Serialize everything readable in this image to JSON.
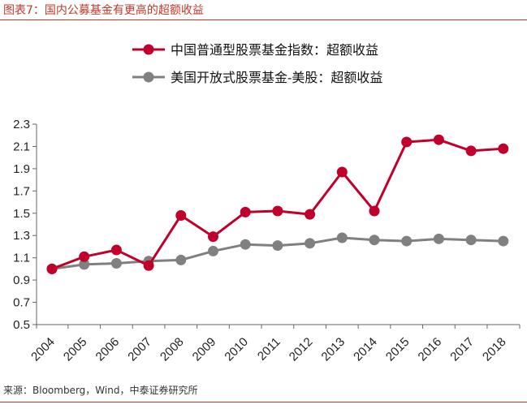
{
  "figure_title": "图表7：国内公募基金有更高的超额收益",
  "source": "来源：Bloomberg，Wind，中泰证券研究所",
  "chart_data": {
    "type": "line",
    "categories": [
      "2004",
      "2005",
      "2006",
      "2007",
      "2008",
      "2009",
      "2010",
      "2011",
      "2012",
      "2013",
      "2014",
      "2015",
      "2016",
      "2017",
      "2018"
    ],
    "series": [
      {
        "name": "中国普通型股票基金指数：超额收益",
        "color": "#c0002a",
        "values": [
          1.0,
          1.11,
          1.17,
          1.03,
          1.48,
          1.29,
          1.51,
          1.52,
          1.49,
          1.87,
          1.52,
          2.14,
          2.16,
          2.06,
          2.08
        ]
      },
      {
        "name": "美国开放式股票基金-美股：超额收益",
        "color": "#808080",
        "values": [
          1.0,
          1.04,
          1.05,
          1.07,
          1.08,
          1.16,
          1.22,
          1.21,
          1.23,
          1.28,
          1.26,
          1.25,
          1.27,
          1.26,
          1.25
        ]
      }
    ],
    "yticks": [
      "2.3",
      "2.1",
      "1.9",
      "1.7",
      "1.5",
      "1.3",
      "1.1",
      "0.9",
      "0.7",
      "0.5"
    ],
    "ylim": [
      0.5,
      2.3
    ],
    "grid": false,
    "legend_position": "top"
  }
}
